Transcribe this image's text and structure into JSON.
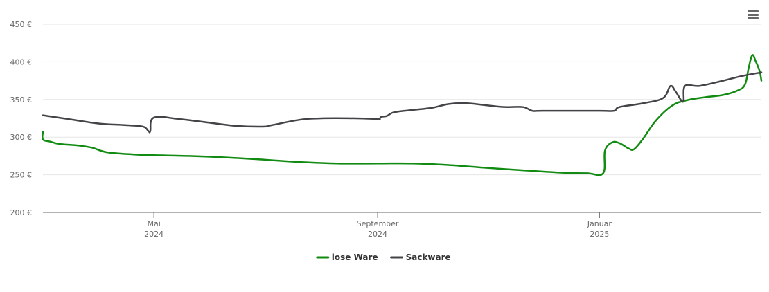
{
  "chart_data": {
    "type": "line",
    "x_type": "date",
    "y_axis": {
      "ylim": [
        200,
        450
      ],
      "ticks": [
        200,
        250,
        300,
        350,
        400,
        450
      ],
      "tick_labels": [
        "200 €",
        "250 €",
        "300 €",
        "350 €",
        "400 €",
        "450 €"
      ]
    },
    "xlim": [
      "2024-03-01",
      "2025-03-31"
    ],
    "x_ticks": [
      {
        "date": "2024-05-01",
        "month": "Mai",
        "year": "2024"
      },
      {
        "date": "2024-09-01",
        "month": "September",
        "year": "2024"
      },
      {
        "date": "2025-01-01",
        "month": "Januar",
        "year": "2025"
      }
    ],
    "grid": true,
    "legend_position": "bottom-center",
    "series": [
      {
        "name": "lose Ware",
        "color": "#118b11",
        "points": [
          [
            "2024-03-01",
            307
          ],
          [
            "2024-03-01",
            297
          ],
          [
            "2024-03-05",
            294
          ],
          [
            "2024-03-10",
            291
          ],
          [
            "2024-03-20",
            289
          ],
          [
            "2024-03-28",
            286
          ],
          [
            "2024-04-05",
            280
          ],
          [
            "2024-04-20",
            277
          ],
          [
            "2024-05-01",
            276
          ],
          [
            "2024-05-20",
            275
          ],
          [
            "2024-06-10",
            273
          ],
          [
            "2024-07-01",
            270
          ],
          [
            "2024-07-20",
            267
          ],
          [
            "2024-08-10",
            265
          ],
          [
            "2024-09-01",
            265
          ],
          [
            "2024-09-20",
            265
          ],
          [
            "2024-10-10",
            263
          ],
          [
            "2024-11-01",
            259
          ],
          [
            "2024-11-20",
            256
          ],
          [
            "2024-12-10",
            253
          ],
          [
            "2024-12-25",
            252
          ],
          [
            "2025-01-03",
            252
          ],
          [
            "2025-01-04",
            282
          ],
          [
            "2025-01-08",
            293
          ],
          [
            "2025-01-12",
            292
          ],
          [
            "2025-01-17",
            285
          ],
          [
            "2025-01-20",
            284
          ],
          [
            "2025-01-25",
            298
          ],
          [
            "2025-02-01",
            322
          ],
          [
            "2025-02-10",
            342
          ],
          [
            "2025-02-18",
            349
          ],
          [
            "2025-02-28",
            353
          ],
          [
            "2025-03-10",
            356
          ],
          [
            "2025-03-18",
            362
          ],
          [
            "2025-03-22",
            370
          ],
          [
            "2025-03-24",
            392
          ],
          [
            "2025-03-26",
            409
          ],
          [
            "2025-03-28",
            400
          ],
          [
            "2025-03-30",
            388
          ],
          [
            "2025-03-31",
            375
          ]
        ]
      },
      {
        "name": "Sackware",
        "color": "#434348",
        "points": [
          [
            "2024-03-01",
            329
          ],
          [
            "2024-03-15",
            324
          ],
          [
            "2024-04-01",
            318
          ],
          [
            "2024-04-15",
            316
          ],
          [
            "2024-04-25",
            314
          ],
          [
            "2024-04-28",
            308
          ],
          [
            "2024-04-29",
            308
          ],
          [
            "2024-05-01",
            326
          ],
          [
            "2024-05-15",
            324
          ],
          [
            "2024-06-01",
            319
          ],
          [
            "2024-06-15",
            315
          ],
          [
            "2024-06-30",
            314
          ],
          [
            "2024-07-05",
            316
          ],
          [
            "2024-07-20",
            323
          ],
          [
            "2024-08-01",
            325
          ],
          [
            "2024-08-20",
            325
          ],
          [
            "2024-09-01",
            324
          ],
          [
            "2024-09-02",
            324
          ],
          [
            "2024-09-03",
            327
          ],
          [
            "2024-09-06",
            328
          ],
          [
            "2024-09-10",
            333
          ],
          [
            "2024-09-20",
            336
          ],
          [
            "2024-10-01",
            339
          ],
          [
            "2024-10-10",
            344
          ],
          [
            "2024-10-20",
            345
          ],
          [
            "2024-11-01",
            342
          ],
          [
            "2024-11-10",
            340
          ],
          [
            "2024-11-20",
            340
          ],
          [
            "2024-11-25",
            335
          ],
          [
            "2024-12-01",
            335
          ],
          [
            "2025-01-01",
            335
          ],
          [
            "2025-01-09",
            335
          ],
          [
            "2025-01-12",
            340
          ],
          [
            "2025-01-25",
            345
          ],
          [
            "2025-02-05",
            352
          ],
          [
            "2025-02-09",
            368
          ],
          [
            "2025-02-12",
            360
          ],
          [
            "2025-02-16",
            347
          ],
          [
            "2025-02-17",
            368
          ],
          [
            "2025-02-25",
            368
          ],
          [
            "2025-03-10",
            375
          ],
          [
            "2025-03-20",
            381
          ],
          [
            "2025-03-31",
            386
          ]
        ]
      }
    ]
  },
  "ui": {
    "menu_icon": "hamburger-menu-icon"
  }
}
